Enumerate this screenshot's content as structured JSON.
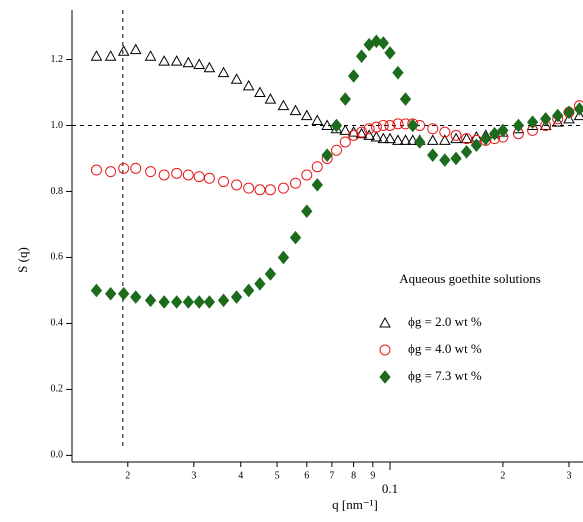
{
  "chart_data": {
    "type": "scatter",
    "xscale": "log",
    "xlabel": "q [nm⁻¹]",
    "ylabel": "S (q)",
    "annotation": "Aqueous goethite solutions",
    "hline": 1.0,
    "vline": 0.0194,
    "xlim": [
      0.0142,
      0.327
    ],
    "ylim": [
      -0.02,
      1.35
    ],
    "xticks": [
      {
        "value": 0.02,
        "label": "2"
      },
      {
        "value": 0.03,
        "label": "3"
      },
      {
        "value": 0.04,
        "label": "4"
      },
      {
        "value": 0.05,
        "label": "5"
      },
      {
        "value": 0.06,
        "label": "6"
      },
      {
        "value": 0.07,
        "label": "7"
      },
      {
        "value": 0.08,
        "label": "8"
      },
      {
        "value": 0.09,
        "label": "9"
      },
      0.1,
      {
        "value": 0.2,
        "label": "2"
      },
      {
        "value": 0.3,
        "label": "3"
      }
    ],
    "yticks": [
      {
        "value": 0,
        "label": "0.0"
      },
      0.2,
      0.4,
      0.6,
      0.8,
      {
        "value": 1,
        "label": "1.0"
      },
      1.2
    ],
    "x": [
      0.0165,
      0.018,
      0.0195,
      0.021,
      0.023,
      0.025,
      0.027,
      0.029,
      0.031,
      0.033,
      0.036,
      0.039,
      0.042,
      0.045,
      0.048,
      0.052,
      0.056,
      0.06,
      0.064,
      0.068,
      0.072,
      0.076,
      0.08,
      0.084,
      0.088,
      0.092,
      0.096,
      0.1,
      0.105,
      0.11,
      0.115,
      0.12,
      0.13,
      0.14,
      0.15,
      0.16,
      0.17,
      0.18,
      0.19,
      0.2,
      0.22,
      0.24,
      0.26,
      0.28,
      0.3,
      0.32
    ],
    "series": [
      {
        "name": "ϕg = 2.0 wt %",
        "color": "#000000",
        "marker": "triangle",
        "values": [
          1.21,
          1.21,
          1.225,
          1.23,
          1.21,
          1.195,
          1.195,
          1.19,
          1.185,
          1.175,
          1.16,
          1.14,
          1.12,
          1.1,
          1.08,
          1.06,
          1.045,
          1.03,
          1.015,
          1.0,
          0.99,
          0.985,
          0.98,
          0.975,
          0.97,
          0.965,
          0.96,
          0.96,
          0.955,
          0.955,
          0.955,
          0.955,
          0.955,
          0.955,
          0.96,
          0.96,
          0.965,
          0.97,
          0.975,
          0.98,
          0.99,
          1.0,
          1.0,
          1.01,
          1.02,
          1.03
        ]
      },
      {
        "name": "ϕg = 4.0 wt %",
        "color": "#e8191a",
        "marker": "circle",
        "values": [
          0.865,
          0.86,
          0.87,
          0.87,
          0.86,
          0.85,
          0.855,
          0.85,
          0.845,
          0.84,
          0.83,
          0.82,
          0.81,
          0.805,
          0.805,
          0.81,
          0.825,
          0.85,
          0.875,
          0.9,
          0.925,
          0.95,
          0.97,
          0.98,
          0.99,
          0.995,
          1.0,
          1.0,
          1.005,
          1.005,
          1.005,
          1.0,
          0.99,
          0.98,
          0.97,
          0.96,
          0.955,
          0.955,
          0.96,
          0.965,
          0.975,
          0.985,
          1.0,
          1.02,
          1.04,
          1.06
        ]
      },
      {
        "name": "ϕg = 7.3 wt %",
        "color": "#1d6b1d",
        "marker": "diamond",
        "values": [
          0.5,
          0.49,
          0.49,
          0.48,
          0.47,
          0.465,
          0.465,
          0.465,
          0.465,
          0.465,
          0.47,
          0.48,
          0.5,
          0.52,
          0.55,
          0.6,
          0.66,
          0.74,
          0.82,
          0.91,
          1.0,
          1.08,
          1.15,
          1.21,
          1.245,
          1.255,
          1.25,
          1.22,
          1.16,
          1.08,
          1.0,
          0.95,
          0.91,
          0.895,
          0.9,
          0.92,
          0.94,
          0.96,
          0.975,
          0.985,
          1.0,
          1.01,
          1.02,
          1.03,
          1.04,
          1.05
        ]
      }
    ]
  }
}
